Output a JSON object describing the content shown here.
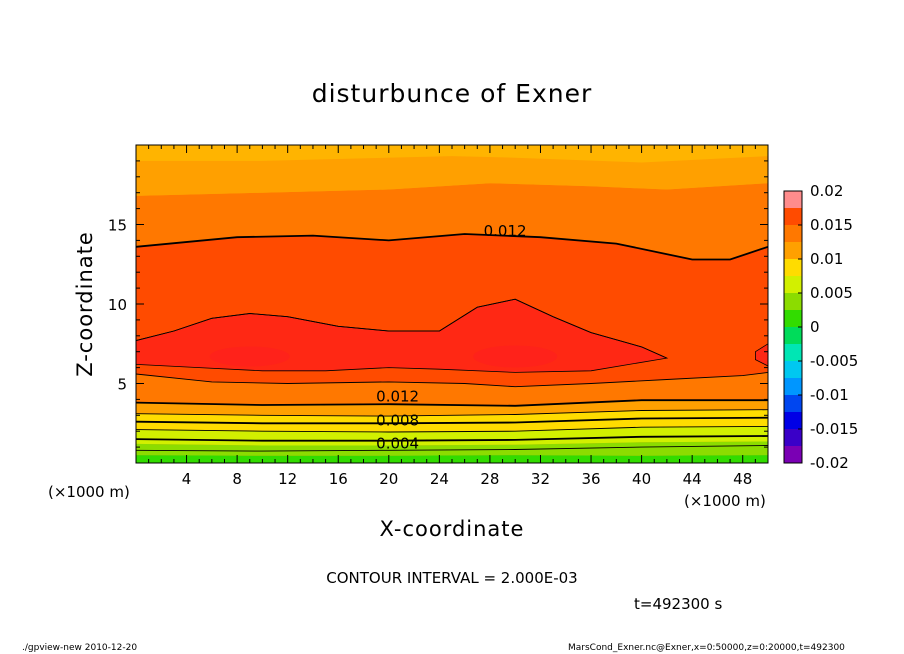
{
  "chart_data": {
    "type": "heatmap",
    "subtype": "filled-contour",
    "title": "disturbunce of Exner",
    "xlabel": "X-coordinate",
    "ylabel": "Z-coordinate",
    "x_unit_left": "(×1000 m)",
    "x_unit_right": "(×1000 m)",
    "xlim": [
      0,
      50
    ],
    "ylim": [
      0,
      20
    ],
    "x_ticks": [
      4,
      8,
      12,
      16,
      20,
      24,
      28,
      32,
      36,
      40,
      44,
      48
    ],
    "y_ticks": [
      5,
      10,
      15
    ],
    "colorbar": {
      "min": -0.02,
      "max": 0.02,
      "labels": [
        "0.02",
        "0.015",
        "0.01",
        "0.005",
        "0",
        "-0.005",
        "-0.01",
        "-0.015",
        "-0.02"
      ],
      "label_values": [
        0.02,
        0.015,
        0.01,
        0.005,
        0,
        -0.005,
        -0.01,
        -0.015,
        -0.02
      ],
      "levels": [
        {
          "lo": -0.02,
          "hi": -0.0175,
          "color": "#7a00b4"
        },
        {
          "lo": -0.0175,
          "hi": -0.015,
          "color": "#3a00c8"
        },
        {
          "lo": -0.015,
          "hi": -0.0125,
          "color": "#0000e6"
        },
        {
          "lo": -0.0125,
          "hi": -0.01,
          "color": "#0046f0"
        },
        {
          "lo": -0.01,
          "hi": -0.0075,
          "color": "#0096ff"
        },
        {
          "lo": -0.0075,
          "hi": -0.005,
          "color": "#00c8f0"
        },
        {
          "lo": -0.005,
          "hi": -0.0025,
          "color": "#00e6b4"
        },
        {
          "lo": -0.0025,
          "hi": 0.0,
          "color": "#00dc5a"
        },
        {
          "lo": 0.0,
          "hi": 0.0025,
          "color": "#32dc00"
        },
        {
          "lo": 0.0025,
          "hi": 0.005,
          "color": "#8cdc00"
        },
        {
          "lo": 0.005,
          "hi": 0.0075,
          "color": "#d2f000"
        },
        {
          "lo": 0.0075,
          "hi": 0.01,
          "color": "#ffdc00"
        },
        {
          "lo": 0.01,
          "hi": 0.0125,
          "color": "#ffa000"
        },
        {
          "lo": 0.0125,
          "hi": 0.015,
          "color": "#ff7800"
        },
        {
          "lo": 0.015,
          "hi": 0.0175,
          "color": "#ff4b00"
        },
        {
          "lo": 0.0175,
          "hi": 0.02,
          "color": "#ff2814"
        }
      ]
    },
    "bands": [
      {
        "level": 0.0014,
        "color": "#32dc00",
        "profile": [
          [
            0,
            0
          ],
          [
            50,
            0
          ]
        ]
      },
      {
        "level": 0.0025,
        "color": "#8cdc00",
        "profile": [
          [
            0,
            0.5
          ],
          [
            10,
            0.45
          ],
          [
            20,
            0.45
          ],
          [
            30,
            0.5
          ],
          [
            40,
            0.45
          ],
          [
            50,
            0.5
          ]
        ]
      },
      {
        "level": 0.0045,
        "color": "#d2f000",
        "profile": [
          [
            0,
            1.2
          ],
          [
            10,
            1.1
          ],
          [
            20,
            1.1
          ],
          [
            30,
            1.15
          ],
          [
            40,
            1.3
          ],
          [
            50,
            1.35
          ]
        ]
      },
      {
        "level": 0.0075,
        "color": "#ffdc00",
        "profile": [
          [
            0,
            2.1
          ],
          [
            10,
            2.0
          ],
          [
            20,
            1.95
          ],
          [
            30,
            2.0
          ],
          [
            40,
            2.25
          ],
          [
            50,
            2.3
          ]
        ]
      },
      {
        "level": 0.01,
        "color": "#ffa000",
        "profile": [
          [
            0,
            3.1
          ],
          [
            10,
            3.0
          ],
          [
            20,
            2.95
          ],
          [
            30,
            3.05
          ],
          [
            40,
            3.3
          ],
          [
            50,
            3.35
          ]
        ]
      },
      {
        "level": 0.0125,
        "color": "#ff7800",
        "profile": [
          [
            0,
            3.8
          ],
          [
            10,
            3.65
          ],
          [
            20,
            3.7
          ],
          [
            30,
            3.6
          ],
          [
            40,
            3.95
          ],
          [
            50,
            3.95
          ]
        ]
      },
      {
        "level": 0.015,
        "color": "#ff4b00",
        "profile": [
          [
            0,
            5.6
          ],
          [
            6,
            5.1
          ],
          [
            12,
            5.0
          ],
          [
            20,
            5.1
          ],
          [
            26,
            5.0
          ],
          [
            30,
            4.8
          ],
          [
            36,
            5.0
          ],
          [
            42,
            5.25
          ],
          [
            48,
            5.5
          ],
          [
            50,
            5.7
          ]
        ]
      },
      {
        "level": 0.0125,
        "color": "#ff7800",
        "profile": [
          [
            0,
            13.6
          ],
          [
            8,
            14.2
          ],
          [
            14,
            14.3
          ],
          [
            20,
            14.0
          ],
          [
            26,
            14.4
          ],
          [
            32,
            14.2
          ],
          [
            38,
            13.8
          ],
          [
            44,
            12.8
          ],
          [
            47,
            12.8
          ],
          [
            50,
            13.6
          ]
        ]
      },
      {
        "level": 0.01,
        "color": "#ffa000",
        "profile": [
          [
            0,
            16.8
          ],
          [
            10,
            17.0
          ],
          [
            20,
            17.2
          ],
          [
            28,
            17.6
          ],
          [
            36,
            17.4
          ],
          [
            42,
            17.2
          ],
          [
            50,
            17.6
          ]
        ]
      },
      {
        "level": 0.0085,
        "color": "#ffb400",
        "profile": [
          [
            0,
            19.0
          ],
          [
            10,
            19.0
          ],
          [
            25,
            19.3
          ],
          [
            30,
            19.2
          ],
          [
            40,
            18.9
          ],
          [
            50,
            19.3
          ]
        ]
      }
    ],
    "inner_core": {
      "level": 0.0175,
      "color": "#ff2814",
      "top": [
        [
          0,
          7.7
        ],
        [
          3,
          8.3
        ],
        [
          6,
          9.1
        ],
        [
          9,
          9.4
        ],
        [
          12,
          9.2
        ],
        [
          16,
          8.6
        ],
        [
          20,
          8.3
        ],
        [
          24,
          8.3
        ],
        [
          27,
          9.8
        ],
        [
          30,
          10.3
        ],
        [
          33,
          9.2
        ],
        [
          36,
          8.2
        ],
        [
          40,
          7.3
        ],
        [
          42,
          6.6
        ]
      ],
      "bottom": [
        [
          42,
          6.6
        ],
        [
          36,
          5.8
        ],
        [
          30,
          5.7
        ],
        [
          24,
          5.9
        ],
        [
          20,
          6.0
        ],
        [
          15,
          5.8
        ],
        [
          10,
          5.8
        ],
        [
          5,
          6.0
        ],
        [
          0,
          6.2
        ]
      ],
      "right_patch": [
        [
          50,
          7.5
        ],
        [
          49,
          7.0
        ],
        [
          49,
          6.5
        ],
        [
          50,
          6.1
        ]
      ]
    },
    "contour_lines": [
      {
        "value": 0.002,
        "profile": [
          [
            0,
            0.8
          ],
          [
            10,
            0.75
          ],
          [
            20,
            0.8
          ],
          [
            30,
            0.85
          ],
          [
            40,
            1.0
          ],
          [
            50,
            1.1
          ]
        ]
      },
      {
        "value": 0.004,
        "profile": [
          [
            0,
            1.5
          ],
          [
            10,
            1.4
          ],
          [
            20,
            1.4
          ],
          [
            30,
            1.45
          ],
          [
            40,
            1.65
          ],
          [
            50,
            1.7
          ]
        ]
      },
      {
        "value": 0.006,
        "profile": [
          [
            0,
            2.1
          ],
          [
            10,
            2.0
          ],
          [
            20,
            1.95
          ],
          [
            30,
            2.0
          ],
          [
            40,
            2.25
          ],
          [
            50,
            2.3
          ]
        ]
      },
      {
        "value": 0.008,
        "profile": [
          [
            0,
            2.6
          ],
          [
            10,
            2.5
          ],
          [
            20,
            2.5
          ],
          [
            30,
            2.55
          ],
          [
            40,
            2.8
          ],
          [
            50,
            2.85
          ]
        ]
      },
      {
        "value": 0.01,
        "profile": [
          [
            0,
            3.1
          ],
          [
            10,
            3.0
          ],
          [
            20,
            2.95
          ],
          [
            30,
            3.05
          ],
          [
            40,
            3.3
          ],
          [
            50,
            3.35
          ]
        ]
      },
      {
        "value": 0.012,
        "profile": [
          [
            0,
            3.8
          ],
          [
            10,
            3.65
          ],
          [
            20,
            3.7
          ],
          [
            30,
            3.6
          ],
          [
            40,
            3.95
          ],
          [
            50,
            3.95
          ]
        ]
      },
      {
        "value": 0.014,
        "profile": [
          [
            0,
            5.6
          ],
          [
            6,
            5.1
          ],
          [
            12,
            5.0
          ],
          [
            20,
            5.1
          ],
          [
            26,
            5.0
          ],
          [
            30,
            4.8
          ],
          [
            36,
            5.0
          ],
          [
            42,
            5.25
          ],
          [
            48,
            5.5
          ],
          [
            50,
            5.7
          ]
        ]
      },
      {
        "value": 0.014,
        "profile": [
          [
            0,
            7.7
          ],
          [
            3,
            8.3
          ],
          [
            6,
            9.1
          ],
          [
            9,
            9.4
          ],
          [
            12,
            9.2
          ],
          [
            16,
            8.6
          ],
          [
            20,
            8.3
          ],
          [
            24,
            8.3
          ],
          [
            27,
            9.8
          ],
          [
            30,
            10.3
          ],
          [
            33,
            9.2
          ],
          [
            36,
            8.2
          ],
          [
            40,
            7.3
          ],
          [
            42,
            6.6
          ]
        ]
      },
      {
        "value": 0.012,
        "profile": [
          [
            0,
            13.6
          ],
          [
            8,
            14.2
          ],
          [
            14,
            14.3
          ],
          [
            20,
            14.0
          ],
          [
            26,
            14.4
          ],
          [
            32,
            14.2
          ],
          [
            38,
            13.8
          ],
          [
            44,
            12.8
          ],
          [
            47,
            12.8
          ],
          [
            50,
            13.6
          ]
        ]
      }
    ],
    "contour_labels": [
      {
        "text": "0.012",
        "x": 27.5,
        "y": 14.4
      },
      {
        "text": "0.012",
        "x": 19.0,
        "y": 4.0
      },
      {
        "text": "0.008",
        "x": 19.0,
        "y": 2.5
      },
      {
        "text": "0.004",
        "x": 19.0,
        "y": 1.05
      }
    ]
  },
  "annotations": {
    "contour_interval": "CONTOUR INTERVAL = 2.000E-03",
    "time": "t=492300 s",
    "footer_left": "./gpview-new   2010-12-20",
    "footer_right": "MarsCond_Exner.nc@Exner,x=0:50000,z=0:20000,t=492300"
  }
}
